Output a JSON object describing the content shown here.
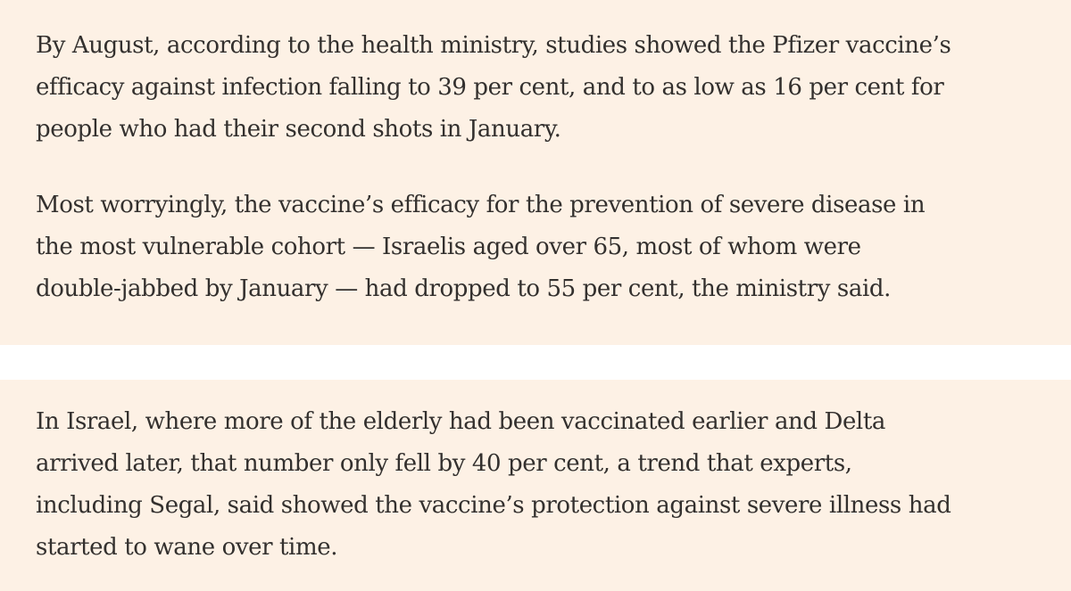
{
  "excerpt_one": {
    "paragraphs": [
      {
        "lines": [
          "By August, according to the health ministry, studies showed the Pfizer vaccine’s",
          "efficacy against infection falling to 39 per cent, and to as low as 16 per cent for",
          "people who had their second shots in January."
        ]
      },
      {
        "lines": [
          "Most worryingly, the vaccine’s efficacy for the prevention of severe disease in",
          "the most vulnerable cohort — Israelis aged over 65, most of whom were",
          "double-jabbed by January — had dropped to 55 per cent, the ministry said."
        ]
      }
    ]
  },
  "excerpt_two": {
    "paragraphs": [
      {
        "lines": [
          "In Israel, where more of the elderly had been vaccinated earlier and Delta",
          "arrived later, that number only fell by 40 per cent, a trend that experts,",
          "including Segal, said showed the vaccine’s protection against severe illness had",
          "started to wane over time."
        ]
      }
    ]
  },
  "colors": {
    "panel_background": "#fdf1e5",
    "text": "#33302e",
    "page_background": "#ffffff"
  }
}
